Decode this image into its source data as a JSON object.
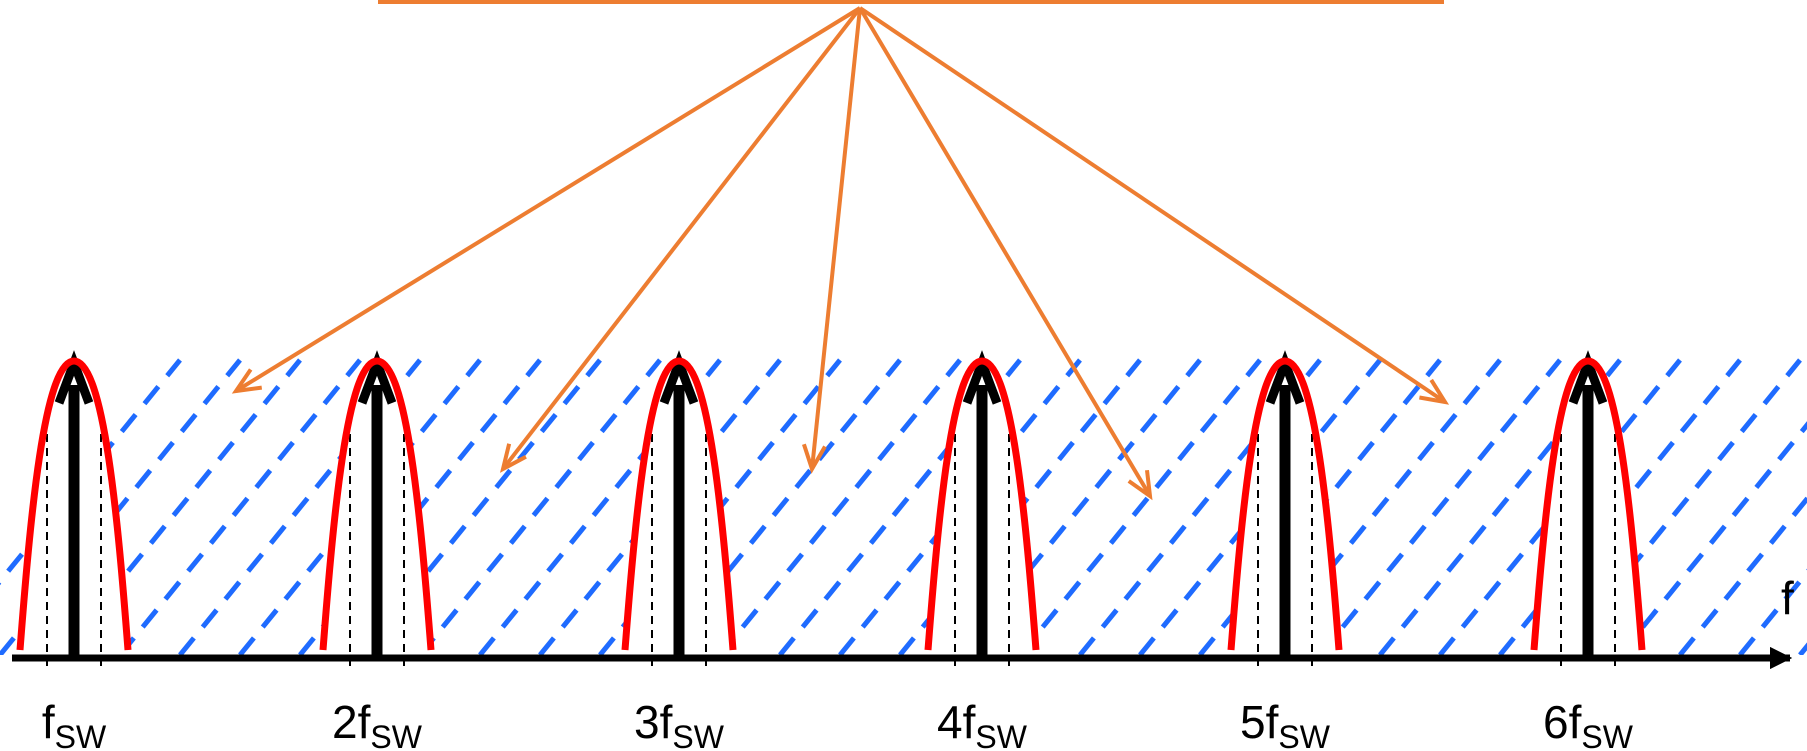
{
  "diagram": {
    "axis_label": "f",
    "harmonics": [
      {
        "coef": "",
        "sub": "SW"
      },
      {
        "coef": "2",
        "sub": "SW"
      },
      {
        "coef": "3",
        "sub": "SW"
      },
      {
        "coef": "4",
        "sub": "SW"
      },
      {
        "coef": "5",
        "sub": "SW"
      },
      {
        "coef": "6",
        "sub": "SW"
      }
    ],
    "harmonic_symbol": "f",
    "colors": {
      "axis": "#000000",
      "impulse": "#000000",
      "envelope": "#ff0000",
      "dashed_guides": "#000000",
      "hatch": "#1f6bff",
      "callout": "#ed7d31"
    }
  }
}
